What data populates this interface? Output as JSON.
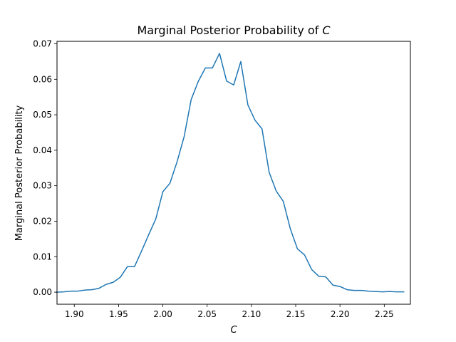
{
  "chart_data": {
    "type": "line",
    "title": "Marginal Posterior Probability of",
    "title_var": "C",
    "xlabel": "C",
    "ylabel": "Marginal Posterior Probability",
    "xlim": [
      1.8805,
      2.2795
    ],
    "ylim": [
      -0.0034,
      0.0707
    ],
    "xticks": [
      1.9,
      1.95,
      2.0,
      2.05,
      2.1,
      2.15,
      2.2,
      2.25
    ],
    "xtick_labels": [
      "1.90",
      "1.95",
      "2.00",
      "2.05",
      "2.10",
      "2.15",
      "2.20",
      "2.25"
    ],
    "yticks": [
      0.0,
      0.01,
      0.02,
      0.03,
      0.04,
      0.05,
      0.06,
      0.07
    ],
    "ytick_labels": [
      "0.00",
      "0.01",
      "0.02",
      "0.03",
      "0.04",
      "0.05",
      "0.06",
      "0.07"
    ],
    "grid": false,
    "line_color": "#1f77b4",
    "series": [
      {
        "x": [
          1.88,
          1.888,
          1.896,
          1.904,
          1.912,
          1.92,
          1.928,
          1.936,
          1.944,
          1.952,
          1.96,
          1.968,
          1.976,
          1.984,
          1.992,
          2.0,
          2.008,
          2.016,
          2.024,
          2.032,
          2.04,
          2.048,
          2.056,
          2.064,
          2.072,
          2.08,
          2.088,
          2.096,
          2.104,
          2.112,
          2.12,
          2.128,
          2.136,
          2.144,
          2.152,
          2.16,
          2.168,
          2.176,
          2.184,
          2.192,
          2.2,
          2.208,
          2.216,
          2.224,
          2.232,
          2.24,
          2.248,
          2.256,
          2.264,
          2.272
        ],
        "values": [
          0.0,
          0.0001,
          0.0003,
          0.0003,
          0.0006,
          0.0007,
          0.0011,
          0.0022,
          0.0028,
          0.0042,
          0.0072,
          0.0072,
          0.0116,
          0.0162,
          0.0206,
          0.0283,
          0.0307,
          0.0367,
          0.0438,
          0.0543,
          0.0594,
          0.0632,
          0.0632,
          0.0673,
          0.0595,
          0.0584,
          0.065,
          0.0528,
          0.0485,
          0.046,
          0.0338,
          0.0285,
          0.0256,
          0.0178,
          0.0122,
          0.0105,
          0.0064,
          0.0045,
          0.0043,
          0.002,
          0.0016,
          0.0007,
          0.0005,
          0.0005,
          0.0003,
          0.0002,
          0.0001,
          0.0002,
          0.0001,
          0.0001
        ]
      }
    ]
  }
}
